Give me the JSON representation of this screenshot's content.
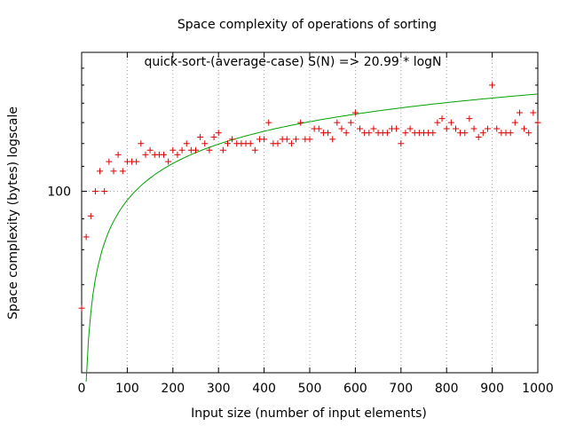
{
  "chart_data": {
    "type": "scatter",
    "title": "Space complexity of operations of sorting",
    "xlabel": "Input size (number of input elements)",
    "ylabel": "Space complexity (bytes) logscale",
    "legend": "quick-sort-(average-case) S(N) => 20.99 * logN",
    "legend_position": "top-center",
    "xlim": [
      0,
      1000
    ],
    "ylim": [
      50,
      170
    ],
    "y_scale": "log",
    "grid": true,
    "x_ticks": [
      0,
      100,
      200,
      300,
      400,
      500,
      600,
      700,
      800,
      900,
      1000
    ],
    "y_tick_labels": [
      {
        "value": 100,
        "label": "100"
      }
    ],
    "fit": {
      "name": "20.99 * logN",
      "coefficient": 20.99,
      "color": "#00a000"
    },
    "series": [
      {
        "color": "#dd0000",
        "x": [
          0,
          10,
          20,
          30,
          40,
          50,
          60,
          70,
          80,
          90,
          100,
          110,
          120,
          130,
          140,
          150,
          160,
          170,
          180,
          190,
          200,
          210,
          220,
          230,
          240,
          250,
          260,
          270,
          280,
          290,
          300,
          310,
          320,
          330,
          340,
          350,
          360,
          370,
          380,
          390,
          400,
          410,
          420,
          430,
          440,
          450,
          460,
          470,
          480,
          490,
          500,
          510,
          520,
          530,
          540,
          550,
          560,
          570,
          580,
          590,
          600,
          610,
          620,
          630,
          640,
          650,
          660,
          670,
          680,
          690,
          700,
          710,
          720,
          730,
          740,
          750,
          760,
          770,
          780,
          790,
          800,
          810,
          820,
          830,
          840,
          850,
          860,
          870,
          880,
          890,
          900,
          910,
          920,
          930,
          940,
          950,
          960,
          970,
          980,
          990,
          1000
        ],
        "y": [
          64,
          84,
          91,
          100,
          108,
          100,
          112,
          108,
          115,
          108,
          112,
          112,
          112,
          120,
          115,
          117,
          115,
          115,
          115,
          112,
          117,
          115,
          117,
          120,
          117,
          117,
          123,
          120,
          117,
          123,
          125,
          117,
          120,
          122,
          120,
          120,
          120,
          120,
          117,
          122,
          122,
          130,
          120,
          120,
          122,
          122,
          120,
          122,
          130,
          122,
          122,
          127,
          127,
          125,
          125,
          122,
          130,
          127,
          125,
          130,
          135,
          127,
          125,
          125,
          127,
          125,
          125,
          125,
          127,
          127,
          120,
          125,
          127,
          125,
          125,
          125,
          125,
          125,
          130,
          132,
          127,
          130,
          127,
          125,
          125,
          132,
          127,
          123,
          125,
          127,
          150,
          127,
          125,
          125,
          125,
          130,
          135,
          127,
          125,
          135,
          130
        ]
      }
    ]
  }
}
